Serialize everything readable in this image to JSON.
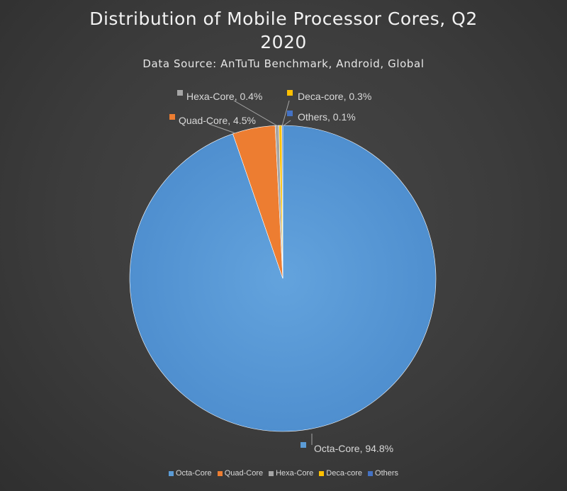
{
  "chart_data": {
    "type": "pie",
    "title_lines": [
      "Distribution of Mobile Processor Cores, Q2",
      "2020"
    ],
    "subtitle": "Data Source: AnTuTu Benchmark, Android, Global",
    "slices": [
      {
        "name": "Octa-Core",
        "value": 94.8,
        "label": "Octa-Core, 94.8%",
        "color": "#5b9bd5"
      },
      {
        "name": "Quad-Core",
        "value": 4.5,
        "label": "Quad-Core, 4.5%",
        "color": "#ed7d31"
      },
      {
        "name": "Hexa-Core",
        "value": 0.4,
        "label": "Hexa-Core, 0.4%",
        "color": "#a5a5a5"
      },
      {
        "name": "Deca-core",
        "value": 0.3,
        "label": "Deca-core, 0.3%",
        "color": "#ffc000"
      },
      {
        "name": "Others",
        "value": 0.1,
        "label": "Others, 0.1%",
        "color": "#4472c4"
      }
    ],
    "legend_position": "bottom"
  }
}
